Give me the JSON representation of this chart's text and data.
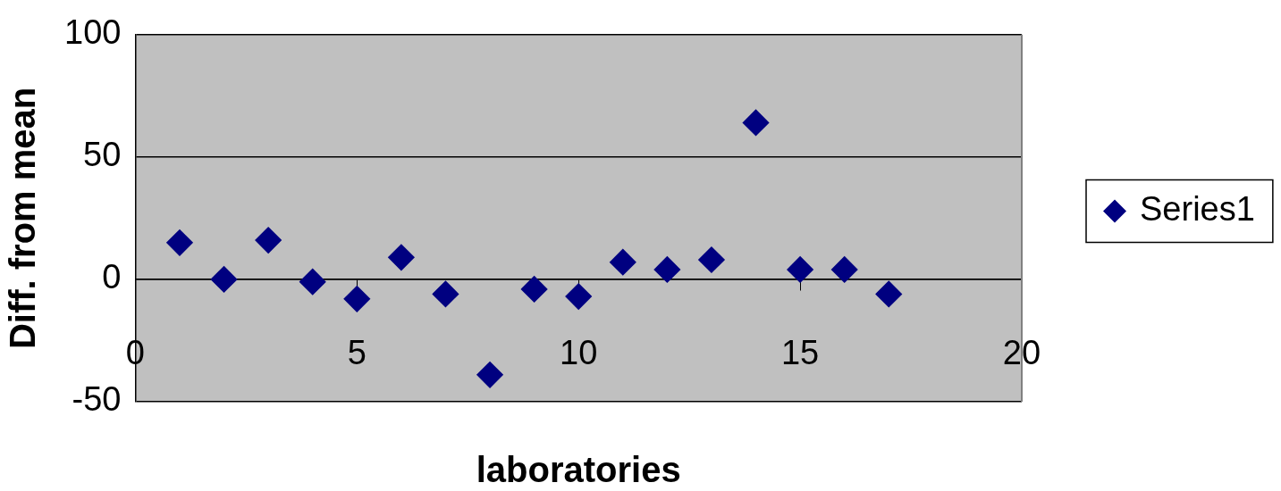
{
  "chart_data": {
    "type": "scatter",
    "xlabel": "laboratories",
    "ylabel": "Diff. from mean",
    "x": [
      1,
      2,
      3,
      4,
      5,
      6,
      7,
      8,
      9,
      10,
      11,
      12,
      13,
      14,
      15,
      16,
      17
    ],
    "series": [
      {
        "name": "Series1",
        "color": "#000080",
        "values": [
          15,
          0,
          16,
          -1,
          -8,
          9,
          -6,
          -39,
          -4,
          -7,
          7,
          4,
          8,
          64,
          4,
          4,
          -6
        ]
      }
    ],
    "xlim": [
      0,
      20
    ],
    "xticks": [
      0,
      5,
      10,
      15,
      20
    ],
    "ylim": [
      -50,
      100
    ],
    "yticks": [
      -50,
      0,
      50,
      100
    ],
    "grid": "y",
    "legend": "right",
    "marker": "diamond"
  }
}
